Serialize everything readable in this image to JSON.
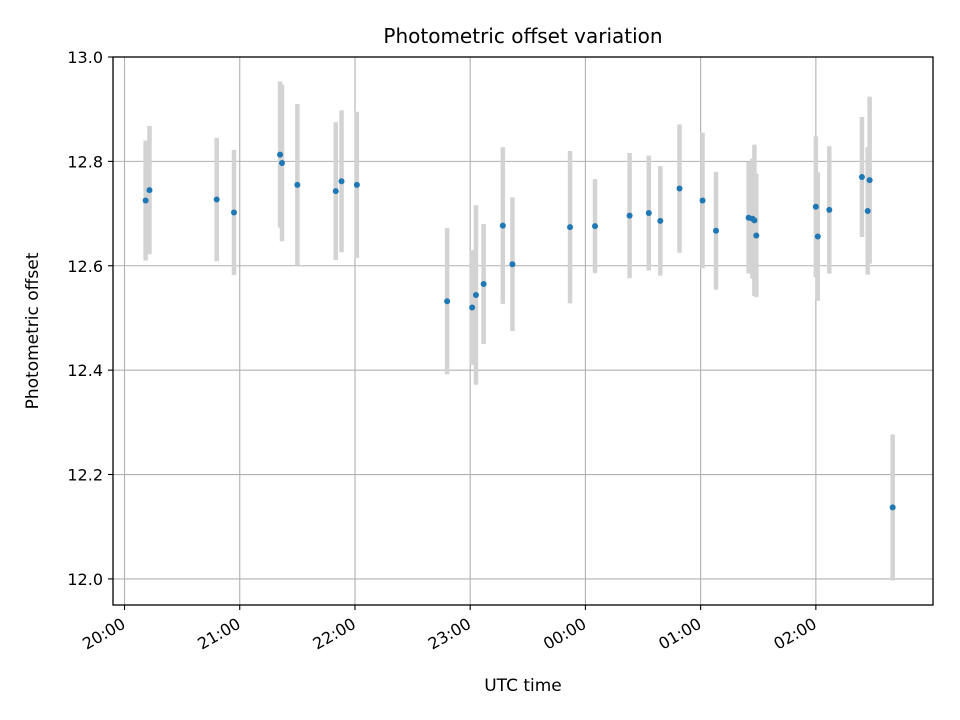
{
  "chart_data": {
    "type": "scatter",
    "title": "Photometric offset variation",
    "xlabel": "UTC time",
    "ylabel": "Photometric offset",
    "x_tick_labels": [
      "20:00",
      "21:00",
      "22:00",
      "23:00",
      "00:00",
      "01:00",
      "02:00"
    ],
    "y_tick_labels": [
      "12.0",
      "12.2",
      "12.4",
      "12.6",
      "12.8",
      "13.0"
    ],
    "x_range": [
      "19:54",
      "03:01"
    ],
    "ylim": [
      11.95,
      13.0
    ],
    "grid": true,
    "colors": {
      "point": "#1f77b4",
      "errorbar": "#d3d3d3",
      "grid": "#b0b0b0"
    },
    "points": [
      {
        "time": "20:11",
        "y": 12.725,
        "err": 0.115
      },
      {
        "time": "20:13",
        "y": 12.745,
        "err": 0.123
      },
      {
        "time": "20:48",
        "y": 12.727,
        "err": 0.118
      },
      {
        "time": "20:57",
        "y": 12.702,
        "err": 0.12
      },
      {
        "time": "21:21",
        "y": 12.813,
        "err": 0.14
      },
      {
        "time": "21:22",
        "y": 12.797,
        "err": 0.15
      },
      {
        "time": "21:30",
        "y": 12.755,
        "err": 0.155
      },
      {
        "time": "21:50",
        "y": 12.743,
        "err": 0.132
      },
      {
        "time": "21:53",
        "y": 12.762,
        "err": 0.136
      },
      {
        "time": "22:01",
        "y": 12.755,
        "err": 0.14
      },
      {
        "time": "22:48",
        "y": 12.532,
        "err": 0.14
      },
      {
        "time": "23:01",
        "y": 12.52,
        "err": 0.11
      },
      {
        "time": "23:03",
        "y": 12.544,
        "err": 0.172
      },
      {
        "time": "23:07",
        "y": 12.565,
        "err": 0.115
      },
      {
        "time": "23:17",
        "y": 12.677,
        "err": 0.15
      },
      {
        "time": "23:22",
        "y": 12.603,
        "err": 0.128
      },
      {
        "time": "23:52",
        "y": 12.674,
        "err": 0.146
      },
      {
        "time": "00:05",
        "y": 12.676,
        "err": 0.09
      },
      {
        "time": "00:23",
        "y": 12.696,
        "err": 0.12
      },
      {
        "time": "00:33",
        "y": 12.701,
        "err": 0.11
      },
      {
        "time": "00:39",
        "y": 12.686,
        "err": 0.105
      },
      {
        "time": "00:49",
        "y": 12.748,
        "err": 0.123
      },
      {
        "time": "01:01",
        "y": 12.725,
        "err": 0.13
      },
      {
        "time": "01:08",
        "y": 12.667,
        "err": 0.113
      },
      {
        "time": "01:25",
        "y": 12.692,
        "err": 0.107
      },
      {
        "time": "01:27",
        "y": 12.69,
        "err": 0.115
      },
      {
        "time": "01:28",
        "y": 12.687,
        "err": 0.145
      },
      {
        "time": "01:29",
        "y": 12.658,
        "err": 0.118
      },
      {
        "time": "02:00",
        "y": 12.713,
        "err": 0.135
      },
      {
        "time": "02:01",
        "y": 12.656,
        "err": 0.123
      },
      {
        "time": "02:07",
        "y": 12.707,
        "err": 0.122
      },
      {
        "time": "02:24",
        "y": 12.77,
        "err": 0.115
      },
      {
        "time": "02:27",
        "y": 12.705,
        "err": 0.122
      },
      {
        "time": "02:28",
        "y": 12.764,
        "err": 0.16
      },
      {
        "time": "02:40",
        "y": 12.137,
        "err": 0.14
      }
    ]
  }
}
